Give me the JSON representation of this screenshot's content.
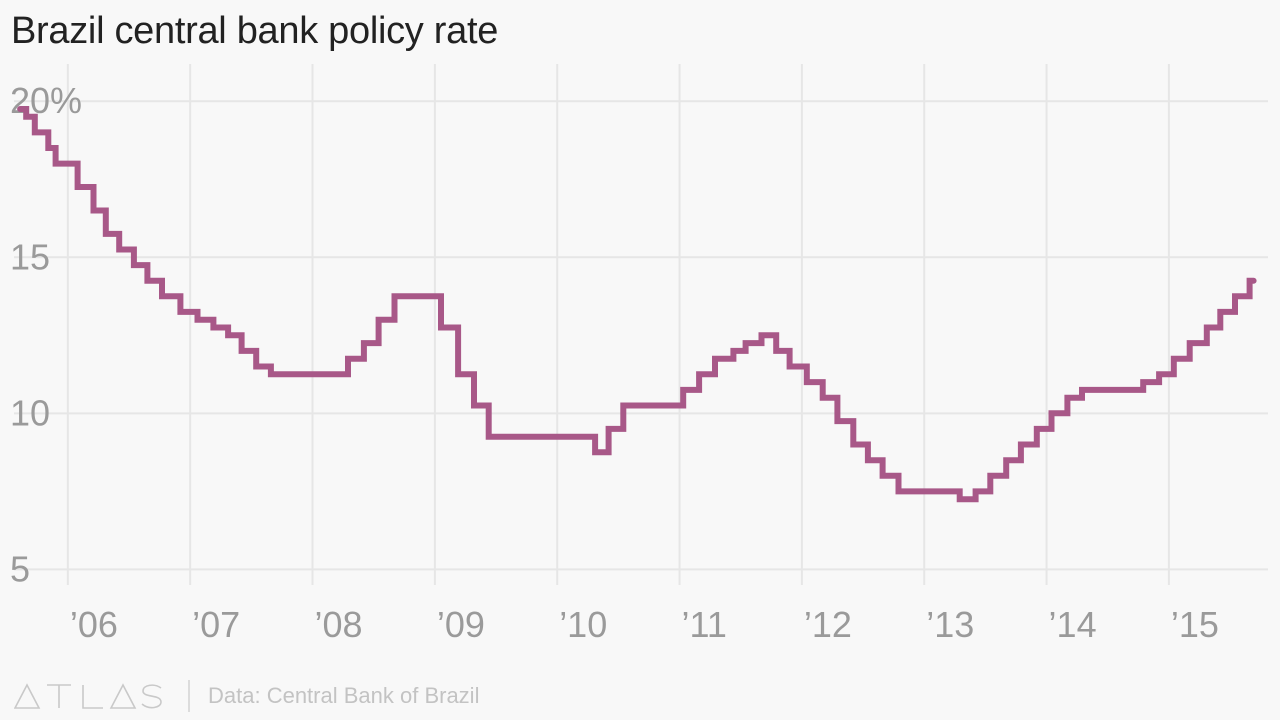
{
  "title": "Brazil central bank policy rate",
  "footer": {
    "logo_text": "ATLAS",
    "source": "Data: Central Bank of Brazil"
  },
  "colors": {
    "line": "#a85888",
    "grid": "#e6e6e6",
    "tick_text": "#9a9a9a",
    "title": "#222222",
    "logo": "#c9c9c9",
    "background": "#f8f8f8"
  },
  "chart_data": {
    "type": "line",
    "step": true,
    "title": "Brazil central bank policy rate",
    "xlabel": "",
    "ylabel": "",
    "xlim": [
      2005.56,
      2015.81
    ],
    "ylim": [
      4.5,
      21
    ],
    "grid": true,
    "y_ticks": [
      {
        "value": 20,
        "label": "20%"
      },
      {
        "value": 15,
        "label": "15"
      },
      {
        "value": 10,
        "label": "10"
      },
      {
        "value": 5,
        "label": "5"
      }
    ],
    "x_ticks": [
      {
        "value": 2006,
        "label": "’06"
      },
      {
        "value": 2007,
        "label": "’07"
      },
      {
        "value": 2008,
        "label": "’08"
      },
      {
        "value": 2009,
        "label": "’09"
      },
      {
        "value": 2010,
        "label": "’10"
      },
      {
        "value": 2011,
        "label": "’11"
      },
      {
        "value": 2012,
        "label": "’12"
      },
      {
        "value": 2013,
        "label": "’13"
      },
      {
        "value": 2014,
        "label": "’14"
      },
      {
        "value": 2015,
        "label": "’15"
      }
    ],
    "series": [
      {
        "x": [
          2005.61,
          2005.66,
          2005.73,
          2005.84,
          2005.9,
          2005.96,
          2006.08,
          2006.21,
          2006.31,
          2006.42,
          2006.54,
          2006.65,
          2006.77,
          2006.92,
          2007.06,
          2007.19,
          2007.31,
          2007.42,
          2007.54,
          2007.66,
          2008.29,
          2008.42,
          2008.54,
          2008.67,
          2009.05,
          2009.19,
          2009.32,
          2009.44,
          2010.31,
          2010.42,
          2010.54,
          2011.03,
          2011.16,
          2011.29,
          2011.44,
          2011.54,
          2011.67,
          2011.79,
          2011.9,
          2012.04,
          2012.17,
          2012.29,
          2012.42,
          2012.54,
          2012.66,
          2012.79,
          2013.29,
          2013.42,
          2013.54,
          2013.67,
          2013.79,
          2013.92,
          2014.04,
          2014.17,
          2014.29,
          2014.79,
          2014.92,
          2015.04,
          2015.17,
          2015.31,
          2015.42,
          2015.54,
          2015.66
        ],
        "y": [
          19.75,
          19.5,
          19.0,
          18.5,
          18.0,
          18.0,
          17.25,
          16.5,
          15.75,
          15.25,
          14.75,
          14.25,
          13.75,
          13.25,
          13.0,
          12.75,
          12.5,
          12.0,
          11.5,
          11.25,
          11.75,
          12.25,
          13.0,
          13.75,
          12.75,
          11.25,
          10.25,
          9.25,
          8.75,
          9.5,
          10.25,
          10.75,
          11.25,
          11.75,
          12.0,
          12.25,
          12.5,
          12.0,
          11.5,
          11.0,
          10.5,
          9.75,
          9.0,
          8.5,
          8.0,
          7.5,
          7.25,
          7.5,
          8.0,
          8.5,
          9.0,
          9.5,
          10.0,
          10.5,
          10.75,
          11.0,
          11.25,
          11.75,
          12.25,
          12.75,
          13.25,
          13.75,
          14.25
        ]
      }
    ]
  }
}
